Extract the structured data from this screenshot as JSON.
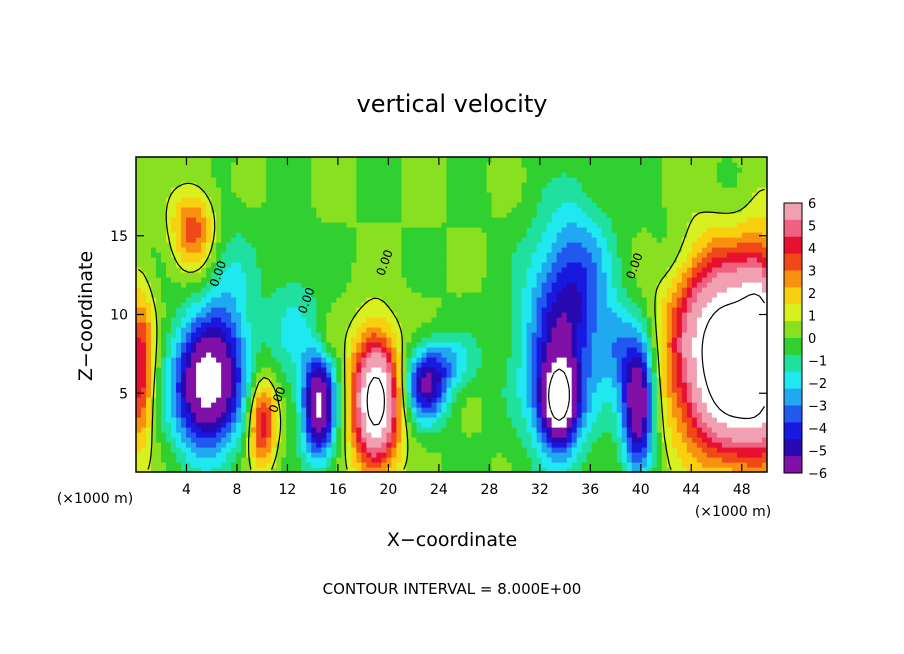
{
  "chart_data": {
    "type": "heatmap",
    "title": "vertical velocity",
    "xlabel": "X−coordinate",
    "ylabel": "Z−coordinate",
    "x_unit_left": "(×1000 m)",
    "x_unit_right": "(×1000 m)",
    "footer": "CONTOUR INTERVAL = 8.000E+00",
    "xlim": [
      0,
      50
    ],
    "ylim": [
      0,
      20
    ],
    "x_ticks": [
      4,
      8,
      12,
      16,
      20,
      24,
      28,
      32,
      36,
      40,
      44,
      48
    ],
    "y_ticks": [
      5,
      10,
      15
    ],
    "x_tick_labels": [
      "4",
      "8",
      "12",
      "16",
      "20",
      "24",
      "28",
      "32",
      "36",
      "40",
      "44",
      "48"
    ],
    "y_tick_labels": [
      "5",
      "10",
      "15"
    ],
    "colorbar": {
      "min": -6,
      "max": 6,
      "ticks": [
        "6",
        "5",
        "4",
        "3",
        "2",
        "1",
        "0",
        "−1",
        "−2",
        "−3",
        "−4",
        "−5",
        "−6"
      ],
      "colors": [
        "#f0a0b0",
        "#f06080",
        "#e81030",
        "#f04818",
        "#f89010",
        "#f8d010",
        "#d8f020",
        "#88e020",
        "#30d030",
        "#20e0a0",
        "#20e8f0",
        "#20a8f0",
        "#2058f0",
        "#1818e0",
        "#2808b0",
        "#8010a8"
      ]
    },
    "contour_labels": [
      "0.00",
      "0.00",
      "0.00",
      "0.00",
      "0.00"
    ],
    "features": [
      {
        "kind": "updraft",
        "x": 4.5,
        "z": 15.5,
        "sx": 1.2,
        "sz": 1.8,
        "value": 3.5
      },
      {
        "kind": "updraft",
        "x": 0.3,
        "z": 6.5,
        "sx": 0.8,
        "sz": 3.5,
        "value": 4.5
      },
      {
        "kind": "downdraft",
        "x": 5.5,
        "z": 5.5,
        "sx": 1.8,
        "sz": 2.8,
        "value": -7.5
      },
      {
        "kind": "downdraft",
        "x": 7.5,
        "z": 9.5,
        "sx": 1.5,
        "sz": 4.0,
        "value": -2.0
      },
      {
        "kind": "updraft",
        "x": 10.0,
        "z": 3.2,
        "sx": 0.8,
        "sz": 2.0,
        "value": 4.5
      },
      {
        "kind": "downdraft",
        "x": 14.5,
        "z": 4.2,
        "sx": 0.9,
        "sz": 2.3,
        "value": -7.0
      },
      {
        "kind": "downdraft",
        "x": 12.5,
        "z": 9.0,
        "sx": 1.5,
        "sz": 3.0,
        "value": -1.5
      },
      {
        "kind": "updraft",
        "x": 19.0,
        "z": 4.5,
        "sx": 1.3,
        "sz": 3.0,
        "value": 9.0
      },
      {
        "kind": "downdraft",
        "x": 23.0,
        "z": 5.5,
        "sx": 1.2,
        "sz": 1.6,
        "value": -5.0
      },
      {
        "kind": "downdraft",
        "x": 25.0,
        "z": 7.0,
        "sx": 1.5,
        "sz": 1.2,
        "value": -2.0
      },
      {
        "kind": "downdraft",
        "x": 33.5,
        "z": 7.5,
        "sx": 2.2,
        "sz": 4.5,
        "value": -4.0
      },
      {
        "kind": "downdraft",
        "x": 33.5,
        "z": 4.5,
        "sx": 1.0,
        "sz": 1.8,
        "value": -7.0
      },
      {
        "kind": "downdraft",
        "x": 35.0,
        "z": 12.5,
        "sx": 2.0,
        "sz": 3.5,
        "value": -2.5
      },
      {
        "kind": "downdraft",
        "x": 39.8,
        "z": 4.5,
        "sx": 0.9,
        "sz": 2.8,
        "value": -7.5
      },
      {
        "kind": "downdraft",
        "x": 38.0,
        "z": 8.0,
        "sx": 1.0,
        "sz": 2.0,
        "value": -2.0
      },
      {
        "kind": "updraft",
        "x": 47.5,
        "z": 6.0,
        "sx": 3.2,
        "sz": 3.6,
        "value": 9.5
      },
      {
        "kind": "updraft",
        "x": 46.5,
        "z": 11.0,
        "sx": 3.0,
        "sz": 3.0,
        "value": 4.0
      },
      {
        "kind": "updraft",
        "x": 49.5,
        "z": 9.0,
        "sx": 1.0,
        "sz": 4.5,
        "value": 3.0
      },
      {
        "kind": "updraft",
        "x": 15.0,
        "z": 8.5,
        "sx": 0.6,
        "sz": 1.0,
        "value": 1.0
      },
      {
        "kind": "downdraft",
        "x": 42.0,
        "z": 13.5,
        "sx": 1.2,
        "sz": 2.0,
        "value": -0.8
      }
    ]
  }
}
